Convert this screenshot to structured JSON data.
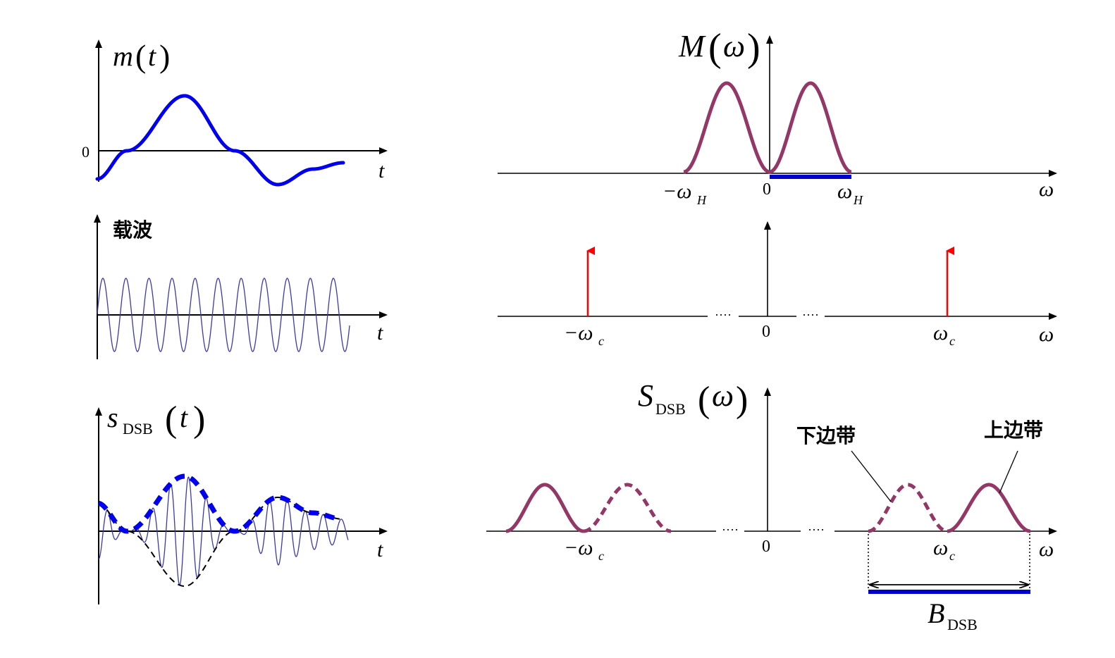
{
  "panels": {
    "message_time": {
      "label_m": "m",
      "label_open": "(",
      "label_t": "t",
      "label_close": ")",
      "zero_label": "0",
      "x_label": "t"
    },
    "carrier_time": {
      "label": "载波",
      "x_label": "t"
    },
    "dsb_time": {
      "label_s": "s",
      "label_sub": "DSB",
      "label_open": "(",
      "label_t": "t",
      "label_close": ")",
      "x_label": "t"
    },
    "message_spectrum": {
      "label_M": "M",
      "label_open": "(",
      "label_omega": "ω",
      "label_close": ")",
      "neg_tick": "−ω",
      "neg_tick_sub": "H",
      "zero_label": "0",
      "pos_tick": "ω",
      "pos_tick_sub": "H",
      "x_label": "ω"
    },
    "carrier_spectrum": {
      "neg_tick": "−ω",
      "neg_tick_sub": "c",
      "zero_label": "0",
      "pos_tick": "ω",
      "pos_tick_sub": "c",
      "x_label": "ω",
      "dots_left": "····",
      "dots_right": "····"
    },
    "dsb_spectrum": {
      "label_S": "S",
      "label_sub": "DSB",
      "label_open": "(",
      "label_omega": "ω",
      "label_close": ")",
      "neg_tick": "−ω",
      "neg_tick_sub": "c",
      "zero_label": "0",
      "pos_tick": "ω",
      "pos_tick_sub": "c",
      "x_label": "ω",
      "dots_left": "····",
      "dots_right": "····",
      "lower_sideband": "下边带",
      "upper_sideband": "上边带",
      "bandwidth_label": "B",
      "bandwidth_sub": "DSB"
    }
  },
  "colors": {
    "message": "#0000ee",
    "spectrum": "#933767",
    "impulse": "#ff0000",
    "carrier": "#3a3aa8",
    "bandwidth": "#0000cc",
    "envelope_dash": "#000000"
  }
}
